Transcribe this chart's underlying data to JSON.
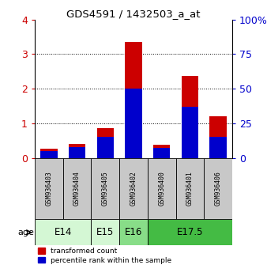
{
  "title": "GDS4591 / 1432503_a_at",
  "samples": [
    "GSM936403",
    "GSM936404",
    "GSM936405",
    "GSM936402",
    "GSM936400",
    "GSM936401",
    "GSM936406"
  ],
  "red_values": [
    0.27,
    0.4,
    0.85,
    3.35,
    0.38,
    2.38,
    1.2
  ],
  "blue_values": [
    5.0,
    8.0,
    15.0,
    50.0,
    7.0,
    37.0,
    15.0
  ],
  "ylim_left": [
    0,
    4
  ],
  "ylim_right": [
    0,
    100
  ],
  "yticks_left": [
    0,
    1,
    2,
    3,
    4
  ],
  "yticks_right": [
    0,
    25,
    50,
    75,
    100
  ],
  "age_groups": [
    {
      "label": "E14",
      "spans": [
        0,
        1
      ],
      "color": "#d4f7d4"
    },
    {
      "label": "E15",
      "spans": [
        2,
        2
      ],
      "color": "#d4f7d4"
    },
    {
      "label": "E16",
      "spans": [
        3,
        3
      ],
      "color": "#88dd88"
    },
    {
      "label": "E17.5",
      "spans": [
        4,
        6
      ],
      "color": "#44bb44"
    }
  ],
  "bar_color_red": "#cc0000",
  "bar_color_blue": "#0000cc",
  "bar_width": 0.6,
  "legend_red": "transformed count",
  "legend_blue": "percentile rank within the sample",
  "left_axis_color": "#cc0000",
  "right_axis_color": "#0000cc",
  "sample_box_color": "#c8c8c8",
  "age_label": "age"
}
